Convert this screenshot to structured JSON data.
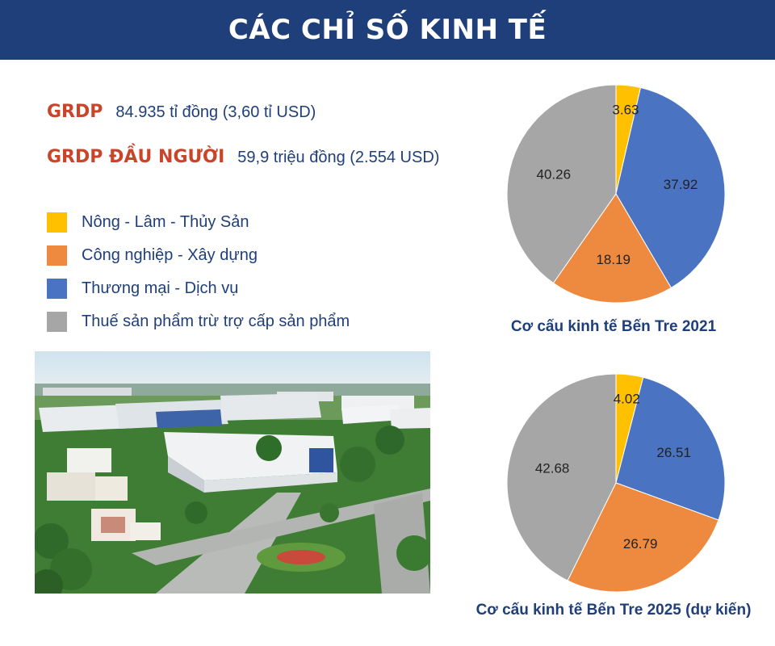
{
  "header": {
    "title": "CÁC CHỈ SỐ KINH TẾ"
  },
  "stats": [
    {
      "label": "GRDP",
      "value": "84.935 tỉ đồng (3,60 tỉ USD)"
    },
    {
      "label": "GRDP ĐẦU NGƯỜI",
      "value": "59,9 triệu đồng (2.554 USD)"
    }
  ],
  "legend": [
    {
      "label": "Nông - Lâm - Thủy Sản",
      "color": "#ffc000"
    },
    {
      "label": "Công nghiệp - Xây dựng",
      "color": "#ed8a3f"
    },
    {
      "label": "Thương mại - Dịch vụ",
      "color": "#4a73c2"
    },
    {
      "label": "Thuế sản phẩm trừ trợ cấp sản phẩm",
      "color": "#a6a6a6"
    }
  ],
  "chart_data": [
    {
      "type": "pie",
      "title": "Cơ cấu kinh tế Bến Tre 2021",
      "categories": [
        "Nông - Lâm - Thủy Sản",
        "Thương mại - Dịch vụ",
        "Công nghiệp - Xây dựng",
        "Thuế sản phẩm trừ trợ cấp sản phẩm"
      ],
      "values": [
        3.63,
        37.92,
        18.19,
        40.26
      ],
      "colors": [
        "#ffc000",
        "#4a73c2",
        "#ed8a3f",
        "#a6a6a6"
      ]
    },
    {
      "type": "pie",
      "title": "Cơ cấu kinh tế Bến Tre 2025 (dự kiến)",
      "categories": [
        "Nông - Lâm - Thủy Sản",
        "Thương mại - Dịch vụ",
        "Công nghiệp - Xây dựng",
        "Thuế sản phẩm trừ trợ cấp sản phẩm"
      ],
      "values": [
        4.02,
        26.51,
        26.79,
        42.68
      ],
      "colors": [
        "#ffc000",
        "#4a73c2",
        "#ed8a3f",
        "#a6a6a6"
      ]
    }
  ]
}
